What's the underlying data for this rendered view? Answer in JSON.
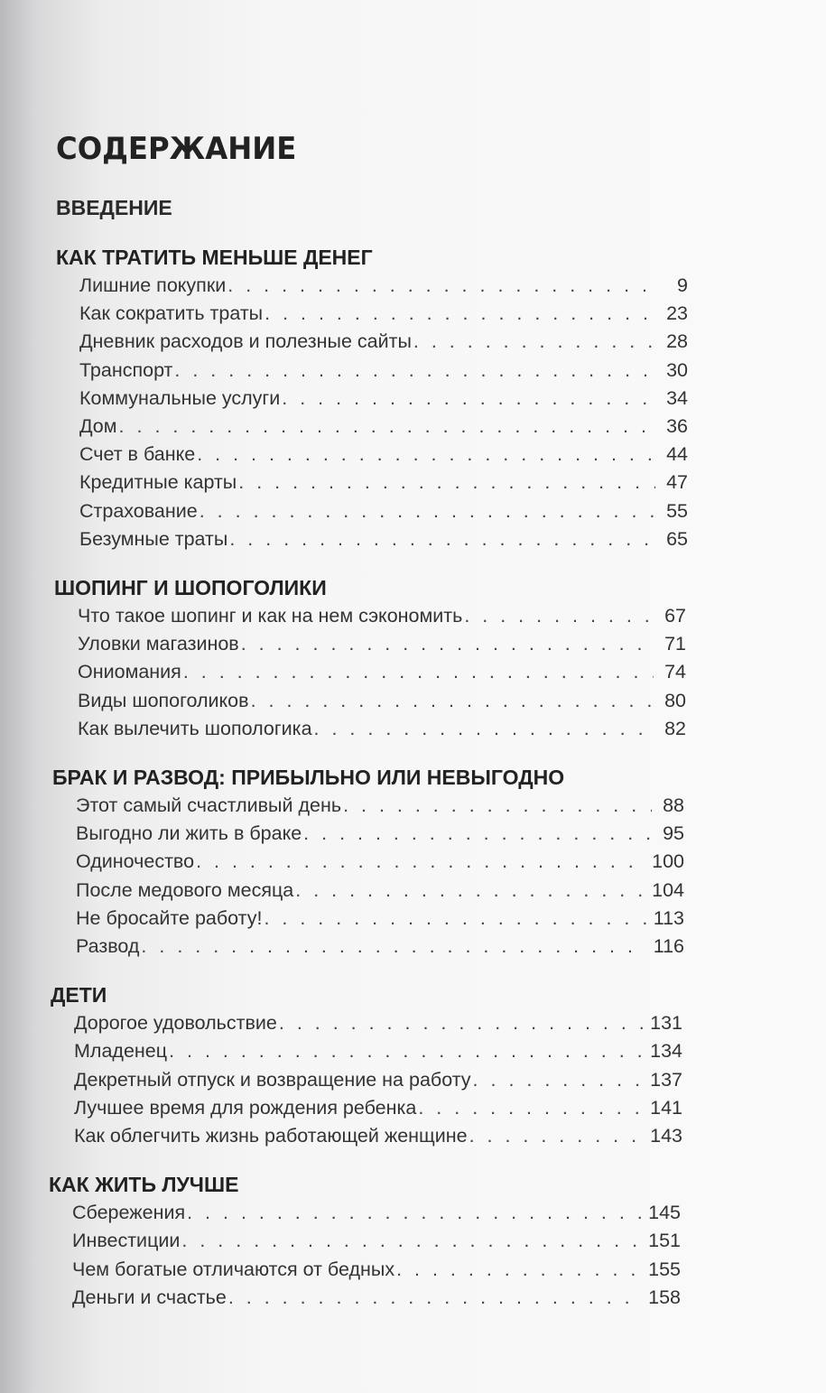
{
  "title": "СОДЕРЖАНИЕ",
  "intro": "ВВЕДЕНИЕ",
  "sections": [
    {
      "heading": "КАК ТРАТИТЬ МЕНЬШЕ ДЕНЕГ",
      "entries": [
        {
          "title": "Лишние покупки",
          "page": "9"
        },
        {
          "title": "Как сократить траты",
          "page": "23"
        },
        {
          "title": "Дневник расходов и полезные сайты",
          "page": "28"
        },
        {
          "title": "Транспорт",
          "page": "30"
        },
        {
          "title": "Коммунальные услуги",
          "page": "34"
        },
        {
          "title": "Дом",
          "page": "36"
        },
        {
          "title": "Счет в банке",
          "page": "44"
        },
        {
          "title": "Кредитные карты",
          "page": "47"
        },
        {
          "title": "Страхование",
          "page": "55"
        },
        {
          "title": "Безумные траты",
          "page": "65"
        }
      ]
    },
    {
      "heading": "ШОПИНГ И ШОПОГОЛИКИ",
      "entries": [
        {
          "title": "Что такое шопинг и как на нем сэкономить",
          "page": "67"
        },
        {
          "title": "Уловки магазинов",
          "page": "71"
        },
        {
          "title": "Ониомания",
          "page": "74"
        },
        {
          "title": "Виды шопоголиков",
          "page": "80"
        },
        {
          "title": "Как вылечить шопологика",
          "page": "82"
        }
      ]
    },
    {
      "heading": "БРАК И РАЗВОД: ПРИБЫЛЬНО ИЛИ НЕВЫГОДНО",
      "entries": [
        {
          "title": "Этот самый счастливый день",
          "page": "88"
        },
        {
          "title": "Выгодно ли жить в браке",
          "page": "95"
        },
        {
          "title": "Одиночество",
          "page": "100"
        },
        {
          "title": "После медового месяца",
          "page": "104"
        },
        {
          "title": "Не бросайте работу!",
          "page": "113"
        },
        {
          "title": "Развод",
          "page": "116"
        }
      ]
    },
    {
      "heading": "ДЕТИ",
      "entries": [
        {
          "title": "Дорогое удовольствие",
          "page": "131"
        },
        {
          "title": "Младенец",
          "page": "134"
        },
        {
          "title": "Декретный отпуск и возвращение на работу",
          "page": "137"
        },
        {
          "title": "Лучшее время для рождения ребенка",
          "page": "141"
        },
        {
          "title": "Как облегчить жизнь работающей женщине",
          "page": "143"
        }
      ]
    },
    {
      "heading": "КАК ЖИТЬ ЛУЧШЕ",
      "entries": [
        {
          "title": "Сбережения",
          "page": "145"
        },
        {
          "title": "Инвестиции",
          "page": "151"
        },
        {
          "title": "Чем богатые отличаются от бедных",
          "page": "155"
        },
        {
          "title": "Деньги и счастье",
          "page": "158"
        }
      ]
    }
  ]
}
